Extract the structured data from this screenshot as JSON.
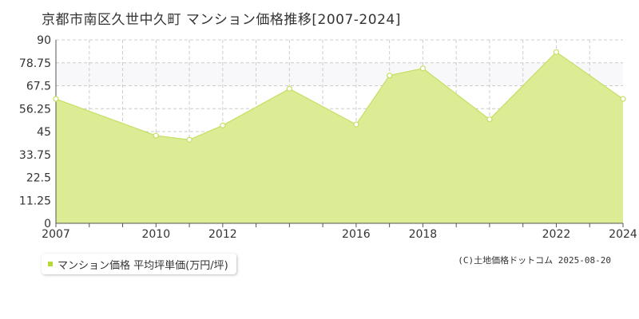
{
  "title": "京都市南区久世中久町 マンション価格推移[2007-2024]",
  "legend_label": "マンション価格 平均坪単価(万円/坪)",
  "source": "(C)土地価格ドットコム 2025-08-20",
  "colors": {
    "fill": "#dbec95",
    "line": "#c3e063",
    "legend": "#b5d937",
    "band": "#f8f7fa"
  },
  "chart_data": {
    "type": "area",
    "title": "京都市南区久世中久町 マンション価格推移[2007-2024]",
    "xlabel": "",
    "ylabel": "",
    "ylim": [
      0,
      90
    ],
    "xlim": [
      2007,
      2024
    ],
    "y_ticks": [
      "0",
      "11.25",
      "22.5",
      "33.75",
      "45",
      "56.25",
      "67.5",
      "78.75",
      "90"
    ],
    "x_ticks": [
      "2007",
      "2010",
      "2012",
      "2016",
      "2018",
      "2022",
      "2024"
    ],
    "x_tick_values": [
      2007,
      2010,
      2012,
      2016,
      2018,
      2022,
      2024
    ],
    "grid": true,
    "legend_position": "bottom-left",
    "series": [
      {
        "name": "マンション価格 平均坪単価(万円/坪)",
        "x": [
          2007,
          2010,
          2011,
          2012,
          2014,
          2016,
          2017,
          2018,
          2020,
          2022,
          2024
        ],
        "values": [
          61,
          43,
          41,
          48,
          66,
          48.5,
          72.5,
          76,
          51,
          84,
          61
        ]
      }
    ]
  }
}
